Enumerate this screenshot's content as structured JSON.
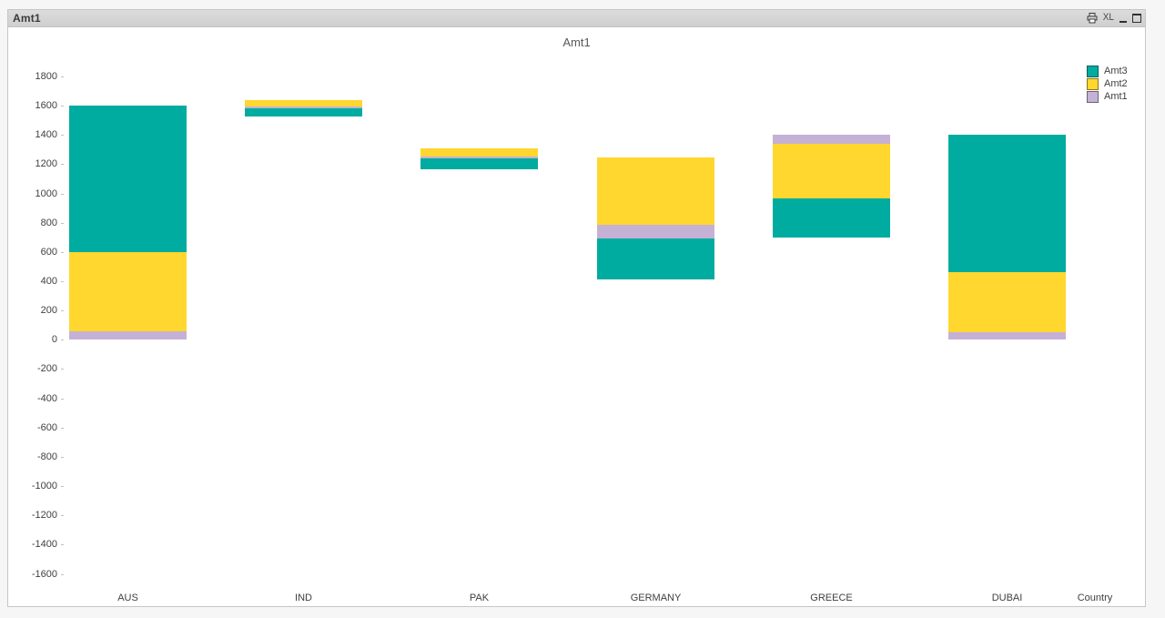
{
  "window": {
    "title": "Amt1",
    "caption": {
      "excel_label": "XL"
    }
  },
  "chart": {
    "title": "Amt1"
  },
  "chart_data": {
    "type": "bar",
    "subtype": "stacked-floating-segments",
    "title": "Amt1",
    "xlabel": "Country",
    "categories": [
      "AUS",
      "IND",
      "PAK",
      "GERMANY",
      "GREECE",
      "DUBAI"
    ],
    "ylim": [
      -1600,
      1800
    ],
    "ytick_step": 200,
    "yticks": [
      1800,
      1600,
      1400,
      1200,
      1000,
      800,
      600,
      400,
      200,
      0,
      -200,
      -400,
      -600,
      -800,
      -1000,
      -1200,
      -1400,
      -1600
    ],
    "grid": false,
    "legend_position": "top-right",
    "legend": [
      {
        "name": "Amt3",
        "color": "#00aba0"
      },
      {
        "name": "Amt2",
        "color": "#ffd72e"
      },
      {
        "name": "Amt1",
        "color": "#c5b1d6"
      }
    ],
    "series_colors": {
      "Amt3": "#00aba0",
      "Amt2": "#ffd72e",
      "Amt1": "#c5b1d6"
    },
    "bars": [
      {
        "category": "AUS",
        "segments": [
          {
            "series": "Amt1",
            "from": 0,
            "to": 60
          },
          {
            "series": "Amt2",
            "from": 60,
            "to": 600
          },
          {
            "series": "Amt3",
            "from": 600,
            "to": 1600
          }
        ]
      },
      {
        "category": "IND",
        "segments": [
          {
            "series": "Amt3",
            "from": 1525,
            "to": 1580
          },
          {
            "series": "Amt1",
            "from": 1580,
            "to": 1595
          },
          {
            "series": "Amt2",
            "from": 1595,
            "to": 1640
          }
        ]
      },
      {
        "category": "PAK",
        "segments": [
          {
            "series": "Amt3",
            "from": 1165,
            "to": 1240
          },
          {
            "series": "Amt1",
            "from": 1240,
            "to": 1250
          },
          {
            "series": "Amt2",
            "from": 1250,
            "to": 1310
          }
        ]
      },
      {
        "category": "GERMANY",
        "segments": [
          {
            "series": "Amt3",
            "from": 415,
            "to": 690
          },
          {
            "series": "Amt1",
            "from": 690,
            "to": 785
          },
          {
            "series": "Amt2",
            "from": 785,
            "to": 1245
          }
        ]
      },
      {
        "category": "GREECE",
        "segments": [
          {
            "series": "Amt3",
            "from": 700,
            "to": 965
          },
          {
            "series": "Amt2",
            "from": 965,
            "to": 1340
          },
          {
            "series": "Amt1",
            "from": 1340,
            "to": 1400
          }
        ]
      },
      {
        "category": "DUBAI",
        "segments": [
          {
            "series": "Amt1",
            "from": 0,
            "to": 50
          },
          {
            "series": "Amt2",
            "from": 50,
            "to": 460
          },
          {
            "series": "Amt3",
            "from": 460,
            "to": 1400
          }
        ]
      }
    ]
  }
}
